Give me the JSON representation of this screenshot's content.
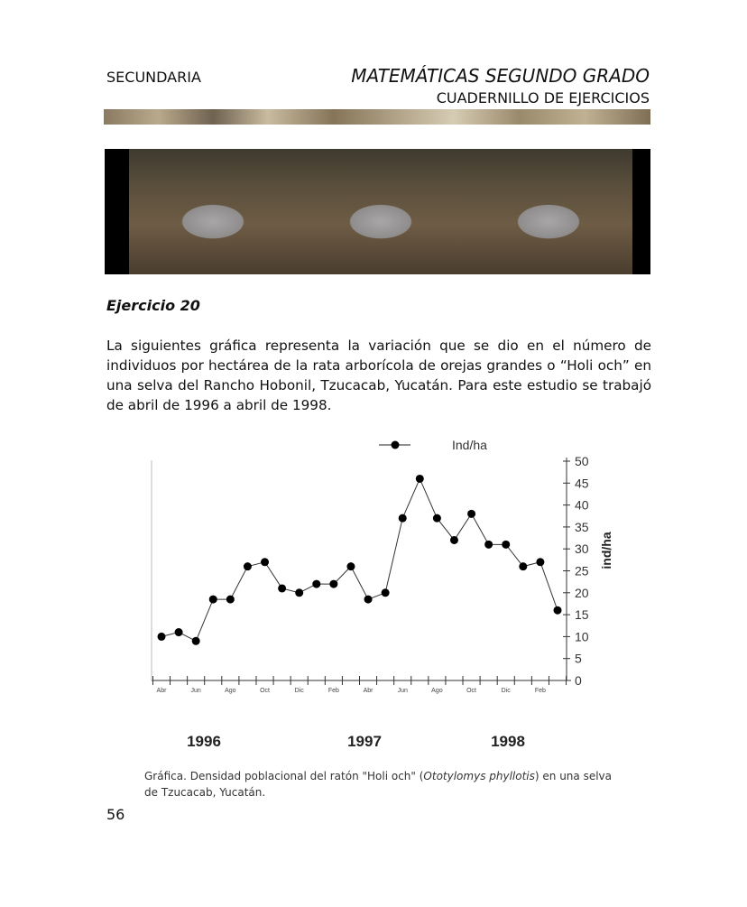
{
  "header": {
    "left": "SECUNDARIA",
    "title": "MATEMÁTICAS SEGUNDO GRADO",
    "subtitle": "CUADERNILLO DE EJERCICIOS"
  },
  "exercise": {
    "title": "Ejercicio 20",
    "text": "La siguientes gráfica representa la variación que se dio en el número de individuos por hectárea de la rata arborícola de orejas grandes o “Holi och” en una selva del Rancho Hobonil, Tzucacab, Yucatán. Para este estudio se trabajó de abril de 1996 a abril de 1998."
  },
  "chart_data": {
    "type": "line",
    "legend": "Ind/ha",
    "legend_position": "top",
    "ylabel": "ind/ha",
    "ylim": [
      0,
      50
    ],
    "yticks": [
      0,
      5,
      10,
      15,
      20,
      25,
      30,
      35,
      40,
      45,
      50
    ],
    "y_axis_side": "right",
    "x_tick_labels": [
      "Abr",
      "Jun",
      "Ago",
      "Oct",
      "Dic",
      "Feb",
      "Abr",
      "Jun",
      "Ago",
      "Oct",
      "Dic",
      "Feb"
    ],
    "year_labels": [
      "1996",
      "1997",
      "1998"
    ],
    "x": [
      "1996-04",
      "1996-05",
      "1996-06",
      "1996-07",
      "1996-08",
      "1996-09",
      "1996-10",
      "1996-11",
      "1996-12",
      "1997-01",
      "1997-02",
      "1997-03",
      "1997-04",
      "1997-05",
      "1997-06",
      "1997-07",
      "1997-08",
      "1997-09",
      "1997-10",
      "1997-11",
      "1997-12",
      "1998-01",
      "1998-02",
      "1998-03"
    ],
    "series": [
      {
        "name": "Ind/ha",
        "values": [
          10,
          11,
          9,
          18.5,
          18.5,
          26,
          27,
          21,
          20,
          22,
          22,
          26,
          18.5,
          20,
          37,
          46,
          37,
          32,
          38,
          31,
          31,
          26,
          27,
          16
        ]
      }
    ],
    "grid": false
  },
  "caption": {
    "prefix": "Gráfica. Densidad poblacional del ratón \"Holi och\" (",
    "species": "Ototylomys phyllotis",
    "suffix": ") en una selva de Tzucacab, Yucatán."
  },
  "page_number": "56"
}
